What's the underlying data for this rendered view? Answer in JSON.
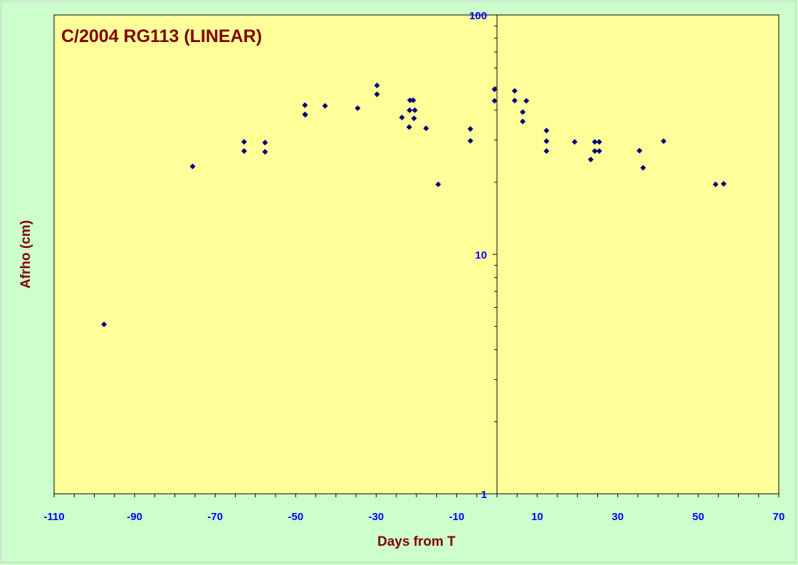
{
  "chart_data": {
    "type": "scatter",
    "title": "C/2004 RG113 (LINEAR)",
    "xlabel": "Days from T",
    "ylabel": "Afrho (cm)",
    "xlim": [
      -110,
      70
    ],
    "ylim": [
      1,
      100
    ],
    "yscale": "log",
    "x_ticks": [
      "-110",
      "-90",
      "-70",
      "-50",
      "-30",
      "-10",
      "10",
      "30",
      "50",
      "70"
    ],
    "y_ticks": [
      "1",
      "10",
      "100"
    ],
    "grid": false,
    "legend": "none",
    "colors": {
      "plot_bg": "#ffff99",
      "page_bg": "#ccffcc",
      "marker": "#000080",
      "tick_text": "#0000ff",
      "title_text": "#800000"
    },
    "points": [
      [
        -97.6,
        5.1
      ],
      [
        -75.6,
        23.3
      ],
      [
        -62.8,
        29.5
      ],
      [
        -62.8,
        27.0
      ],
      [
        -57.6,
        29.3
      ],
      [
        -57.6,
        26.8
      ],
      [
        -47.7,
        42.0
      ],
      [
        -47.7,
        38.4
      ],
      [
        -47.6,
        38.3
      ],
      [
        -42.7,
        41.7
      ],
      [
        -34.6,
        40.8
      ],
      [
        -29.8,
        46.6
      ],
      [
        -29.8,
        50.8
      ],
      [
        -23.6,
        37.3
      ],
      [
        -21.8,
        34.0
      ],
      [
        -21.7,
        40.0
      ],
      [
        -21.6,
        44.0
      ],
      [
        -20.8,
        44.0
      ],
      [
        -20.6,
        37.0
      ],
      [
        -20.4,
        40.0
      ],
      [
        -17.6,
        33.6
      ],
      [
        -14.6,
        19.6
      ],
      [
        -6.6,
        33.4
      ],
      [
        -6.6,
        29.8
      ],
      [
        -0.6,
        48.9
      ],
      [
        -0.6,
        43.8
      ],
      [
        4.4,
        48.2
      ],
      [
        4.4,
        43.9
      ],
      [
        6.4,
        39.3
      ],
      [
        6.4,
        35.9
      ],
      [
        7.3,
        43.8
      ],
      [
        12.3,
        32.9
      ],
      [
        12.3,
        29.7
      ],
      [
        12.3,
        27.0
      ],
      [
        19.3,
        29.5
      ],
      [
        23.3,
        24.9
      ],
      [
        24.3,
        29.5
      ],
      [
        24.3,
        27.0
      ],
      [
        25.4,
        29.5
      ],
      [
        25.4,
        27.0
      ],
      [
        35.4,
        27.1
      ],
      [
        36.3,
        23.0
      ],
      [
        41.4,
        29.7
      ],
      [
        54.3,
        19.6
      ],
      [
        56.3,
        19.7
      ]
    ]
  }
}
